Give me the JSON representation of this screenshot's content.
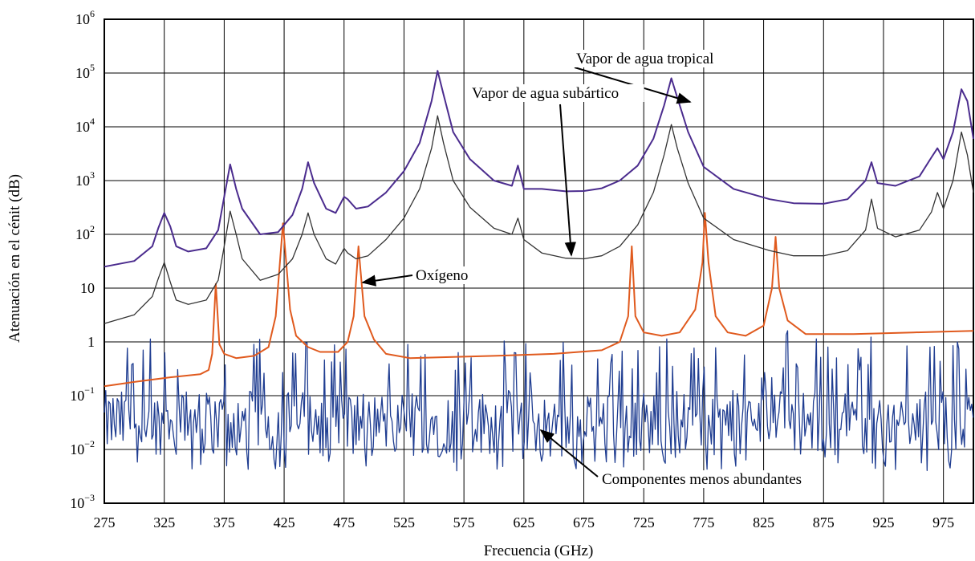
{
  "chart_data": {
    "type": "line",
    "xlabel": "Frecuencia (GHz)",
    "ylabel": "Atenuación en el cénit (dB)",
    "xlim": [
      275,
      1000
    ],
    "ylim": [
      0.001,
      1000000
    ],
    "yscale": "log",
    "grid": true,
    "x_ticks": [
      "275",
      "325",
      "375",
      "425",
      "475",
      "525",
      "575",
      "625",
      "675",
      "725",
      "775",
      "825",
      "875",
      "925",
      "975"
    ],
    "y_ticks": [
      {
        "base": "10",
        "exp": "6",
        "value": 1000000
      },
      {
        "base": "10",
        "exp": "5",
        "value": 100000
      },
      {
        "base": "10",
        "exp": "4",
        "value": 10000
      },
      {
        "base": "10",
        "exp": "3",
        "value": 1000
      },
      {
        "base": "10",
        "exp": "2",
        "value": 100
      },
      {
        "base": "10",
        "exp": "",
        "value": 10
      },
      {
        "base": "1",
        "exp": "",
        "value": 1
      },
      {
        "base": "10",
        "exp": "−1",
        "value": 0.1
      },
      {
        "base": "10",
        "exp": "−2",
        "value": 0.01
      },
      {
        "base": "10",
        "exp": "−3",
        "value": 0.001
      }
    ],
    "series": [
      {
        "name": "Vapor de agua tropical",
        "color": "#4b2c8e",
        "points": [
          [
            275,
            25
          ],
          [
            300,
            32
          ],
          [
            315,
            60
          ],
          [
            320,
            130
          ],
          [
            325,
            250
          ],
          [
            330,
            140
          ],
          [
            335,
            60
          ],
          [
            345,
            48
          ],
          [
            360,
            55
          ],
          [
            370,
            120
          ],
          [
            375,
            500
          ],
          [
            380,
            2000
          ],
          [
            385,
            700
          ],
          [
            390,
            300
          ],
          [
            405,
            100
          ],
          [
            420,
            110
          ],
          [
            432,
            230
          ],
          [
            440,
            700
          ],
          [
            445,
            2200
          ],
          [
            450,
            900
          ],
          [
            460,
            300
          ],
          [
            468,
            250
          ],
          [
            475,
            500
          ],
          [
            478,
            450
          ],
          [
            485,
            300
          ],
          [
            495,
            330
          ],
          [
            510,
            600
          ],
          [
            525,
            1500
          ],
          [
            538,
            5000
          ],
          [
            548,
            30000
          ],
          [
            553,
            110000
          ],
          [
            558,
            40000
          ],
          [
            566,
            8000
          ],
          [
            580,
            2500
          ],
          [
            600,
            1000
          ],
          [
            615,
            800
          ],
          [
            620,
            1900
          ],
          [
            625,
            700
          ],
          [
            640,
            700
          ],
          [
            660,
            630
          ],
          [
            675,
            640
          ],
          [
            690,
            720
          ],
          [
            705,
            1000
          ],
          [
            720,
            1900
          ],
          [
            733,
            6000
          ],
          [
            742,
            25000
          ],
          [
            748,
            80000
          ],
          [
            753,
            35000
          ],
          [
            762,
            8000
          ],
          [
            775,
            1800
          ],
          [
            800,
            700
          ],
          [
            830,
            450
          ],
          [
            850,
            380
          ],
          [
            875,
            370
          ],
          [
            895,
            450
          ],
          [
            910,
            1000
          ],
          [
            915,
            2200
          ],
          [
            920,
            900
          ],
          [
            935,
            800
          ],
          [
            955,
            1200
          ],
          [
            965,
            2700
          ],
          [
            970,
            4000
          ],
          [
            975,
            2500
          ],
          [
            983,
            8000
          ],
          [
            990,
            50000
          ],
          [
            995,
            30000
          ],
          [
            1000,
            6000
          ]
        ]
      },
      {
        "name": "Vapor de agua subártico",
        "color": "#333333",
        "points": [
          [
            275,
            2.2
          ],
          [
            300,
            3.2
          ],
          [
            315,
            7
          ],
          [
            320,
            15
          ],
          [
            325,
            30
          ],
          [
            330,
            13
          ],
          [
            335,
            6
          ],
          [
            345,
            5
          ],
          [
            360,
            6
          ],
          [
            370,
            14
          ],
          [
            375,
            60
          ],
          [
            380,
            270
          ],
          [
            385,
            100
          ],
          [
            390,
            35
          ],
          [
            405,
            14
          ],
          [
            420,
            18
          ],
          [
            432,
            35
          ],
          [
            440,
            100
          ],
          [
            445,
            250
          ],
          [
            450,
            100
          ],
          [
            460,
            35
          ],
          [
            468,
            28
          ],
          [
            475,
            55
          ],
          [
            478,
            45
          ],
          [
            485,
            35
          ],
          [
            495,
            40
          ],
          [
            510,
            80
          ],
          [
            525,
            200
          ],
          [
            538,
            700
          ],
          [
            548,
            4000
          ],
          [
            553,
            16000
          ],
          [
            558,
            5000
          ],
          [
            566,
            1000
          ],
          [
            580,
            320
          ],
          [
            600,
            130
          ],
          [
            615,
            100
          ],
          [
            620,
            200
          ],
          [
            625,
            80
          ],
          [
            640,
            45
          ],
          [
            660,
            36
          ],
          [
            675,
            35
          ],
          [
            690,
            40
          ],
          [
            705,
            60
          ],
          [
            720,
            150
          ],
          [
            733,
            600
          ],
          [
            742,
            3000
          ],
          [
            748,
            11000
          ],
          [
            753,
            4000
          ],
          [
            762,
            900
          ],
          [
            775,
            200
          ],
          [
            800,
            80
          ],
          [
            830,
            50
          ],
          [
            850,
            40
          ],
          [
            875,
            40
          ],
          [
            895,
            50
          ],
          [
            910,
            120
          ],
          [
            915,
            450
          ],
          [
            920,
            130
          ],
          [
            935,
            90
          ],
          [
            955,
            120
          ],
          [
            965,
            260
          ],
          [
            970,
            600
          ],
          [
            975,
            300
          ],
          [
            983,
            1000
          ],
          [
            990,
            8000
          ],
          [
            995,
            3000
          ],
          [
            1000,
            600
          ]
        ]
      },
      {
        "name": "Oxígeno",
        "color": "#e05a1e",
        "points": [
          [
            275,
            0.15
          ],
          [
            300,
            0.18
          ],
          [
            330,
            0.22
          ],
          [
            355,
            0.25
          ],
          [
            362,
            0.3
          ],
          [
            365,
            0.6
          ],
          [
            368,
            12
          ],
          [
            371,
            0.9
          ],
          [
            375,
            0.6
          ],
          [
            385,
            0.5
          ],
          [
            400,
            0.55
          ],
          [
            412,
            0.8
          ],
          [
            418,
            3
          ],
          [
            424,
            160
          ],
          [
            430,
            4
          ],
          [
            435,
            1.3
          ],
          [
            445,
            0.8
          ],
          [
            455,
            0.65
          ],
          [
            470,
            0.65
          ],
          [
            478,
            1
          ],
          [
            483,
            3
          ],
          [
            487,
            60
          ],
          [
            492,
            3
          ],
          [
            500,
            1.1
          ],
          [
            510,
            0.6
          ],
          [
            530,
            0.5
          ],
          [
            560,
            0.52
          ],
          [
            600,
            0.55
          ],
          [
            650,
            0.6
          ],
          [
            690,
            0.7
          ],
          [
            705,
            1
          ],
          [
            712,
            3
          ],
          [
            715,
            60
          ],
          [
            718,
            3
          ],
          [
            725,
            1.5
          ],
          [
            740,
            1.3
          ],
          [
            755,
            1.5
          ],
          [
            768,
            4
          ],
          [
            774,
            30
          ],
          [
            776,
            250
          ],
          [
            779,
            30
          ],
          [
            785,
            3
          ],
          [
            795,
            1.5
          ],
          [
            810,
            1.3
          ],
          [
            825,
            2
          ],
          [
            832,
            10
          ],
          [
            835,
            90
          ],
          [
            838,
            10
          ],
          [
            845,
            2.5
          ],
          [
            860,
            1.4
          ],
          [
            900,
            1.4
          ],
          [
            950,
            1.5
          ],
          [
            1000,
            1.6
          ]
        ]
      },
      {
        "name": "Componentes menos abundantes",
        "color": "#1f3d91"
      }
    ],
    "annotations": [
      {
        "text": "Vapor de agua tropical"
      },
      {
        "text": "Vapor de agua subártico"
      },
      {
        "text": "Oxígeno"
      },
      {
        "text": "Componentes menos abundantes"
      }
    ]
  }
}
